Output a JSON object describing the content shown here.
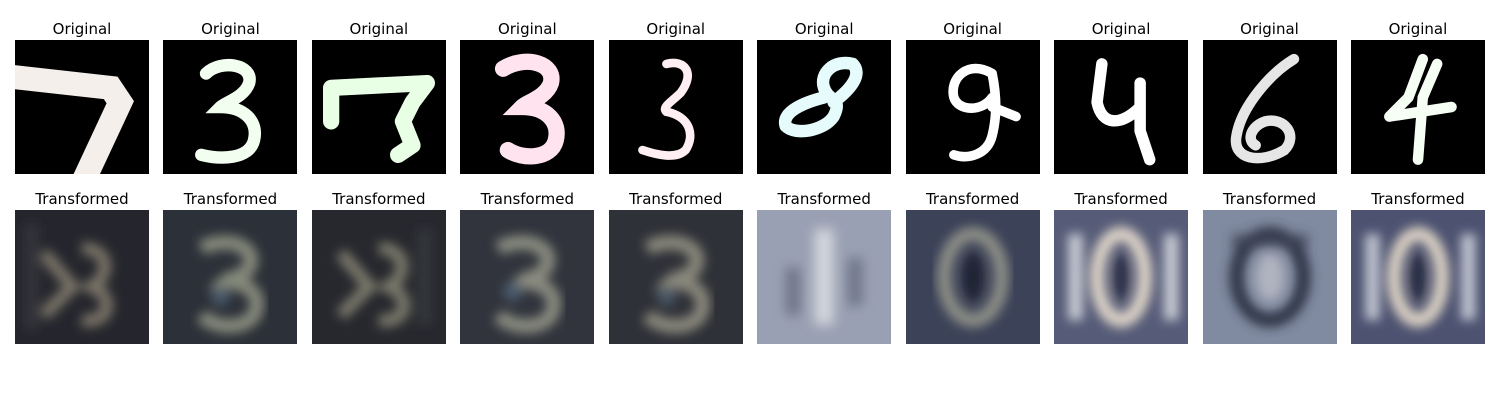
{
  "rows": [
    {
      "kind": "original",
      "items": [
        {
          "title": "Original",
          "digit": "7",
          "tint": "#f4efea"
        },
        {
          "title": "Original",
          "digit": "3",
          "tint": "#f2fff0"
        },
        {
          "title": "Original",
          "digit": "7",
          "tint": "#e8ffe6"
        },
        {
          "title": "Original",
          "digit": "3",
          "tint": "#ffe4f0"
        },
        {
          "title": "Original",
          "digit": "3",
          "tint": "#ffeef2"
        },
        {
          "title": "Original",
          "digit": "8",
          "tint": "#e6fcfc"
        },
        {
          "title": "Original",
          "digit": "9",
          "tint": "#ffffff"
        },
        {
          "title": "Original",
          "digit": "4",
          "tint": "#ffffff"
        },
        {
          "title": "Original",
          "digit": "6",
          "tint": "#e6e6e6"
        },
        {
          "title": "Original",
          "digit": "4",
          "tint": "#f6fff4"
        }
      ]
    },
    {
      "kind": "transformed",
      "items": [
        {
          "title": "Transformed",
          "digit": "5",
          "bg": "#25262d",
          "fg": "#7a7568"
        },
        {
          "title": "Transformed",
          "digit": "3",
          "bg": "#2c3038",
          "fg": "#868a7c"
        },
        {
          "title": "Transformed",
          "digit": "5",
          "bg": "#27282e",
          "fg": "#7c7a6c"
        },
        {
          "title": "Transformed",
          "digit": "3",
          "bg": "#31343c",
          "fg": "#8a8c80"
        },
        {
          "title": "Transformed",
          "digit": "3",
          "bg": "#2f3138",
          "fg": "#8a887c"
        },
        {
          "title": "Transformed",
          "digit": "1",
          "bg": "#9aa0b3",
          "fg": "#d2d6dc"
        },
        {
          "title": "Transformed",
          "digit": "0",
          "bg": "#3c4258",
          "fg": "#8c8e86"
        },
        {
          "title": "Transformed",
          "digit": "0",
          "bg": "#565c78",
          "fg": "#ded4c8"
        },
        {
          "title": "Transformed",
          "digit": "0",
          "bg": "#808aa0",
          "fg": "#2f3446"
        },
        {
          "title": "Transformed",
          "digit": "0",
          "bg": "#4c5270",
          "fg": "#dcd2c4"
        }
      ]
    }
  ]
}
